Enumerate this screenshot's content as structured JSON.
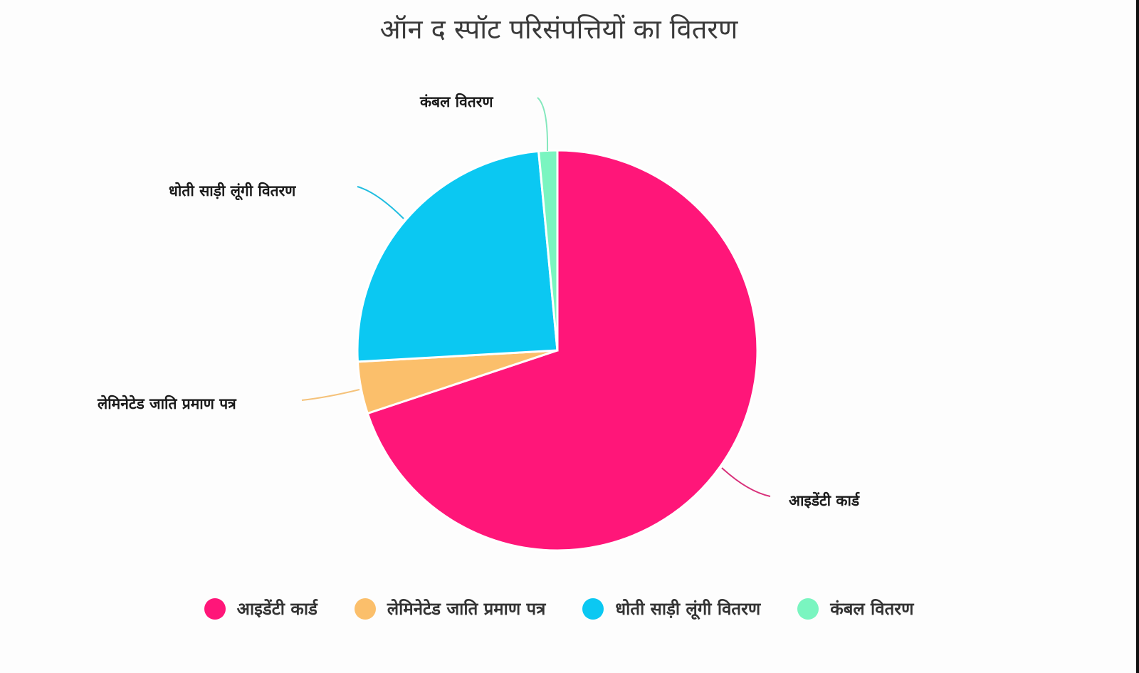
{
  "title": "ऑन द स्पॉट परिसंपत्तियों का वितरण",
  "chart_data": {
    "type": "pie",
    "title": "ऑन द स्पॉट परिसंपत्तियों का वितरण",
    "categories": [
      "आइडेंटी कार्ड",
      "लेमिनेटेड जाति प्रमाण पत्र",
      "धोती साड़ी लूंगी वितरण",
      "कंबल वितरण"
    ],
    "values": [
      69.9,
      4.2,
      24.4,
      1.5
    ],
    "colors": [
      "#ff1679",
      "#fbbf6b",
      "#0bc8f2",
      "#7af5c0"
    ],
    "start_angle": "12 o'clock, clockwise",
    "legend_position": "bottom"
  },
  "labels": {
    "identity_card": "आइडेंटी कार्ड",
    "caste_certificate": "लेमिनेटेड जाति प्रमाण पत्र",
    "dhoti_saree": "धोती साड़ी लूंगी वितरण",
    "blanket": "कंबल वितरण"
  },
  "legend": [
    {
      "label": "आइडेंटी कार्ड",
      "color": "#ff1679"
    },
    {
      "label": "लेमिनेटेड जाति प्रमाण पत्र",
      "color": "#fbbf6b"
    },
    {
      "label": "धोती साड़ी लूंगी वितरण",
      "color": "#0bc8f2"
    },
    {
      "label": "कंबल वितरण",
      "color": "#7af5c0"
    }
  ]
}
